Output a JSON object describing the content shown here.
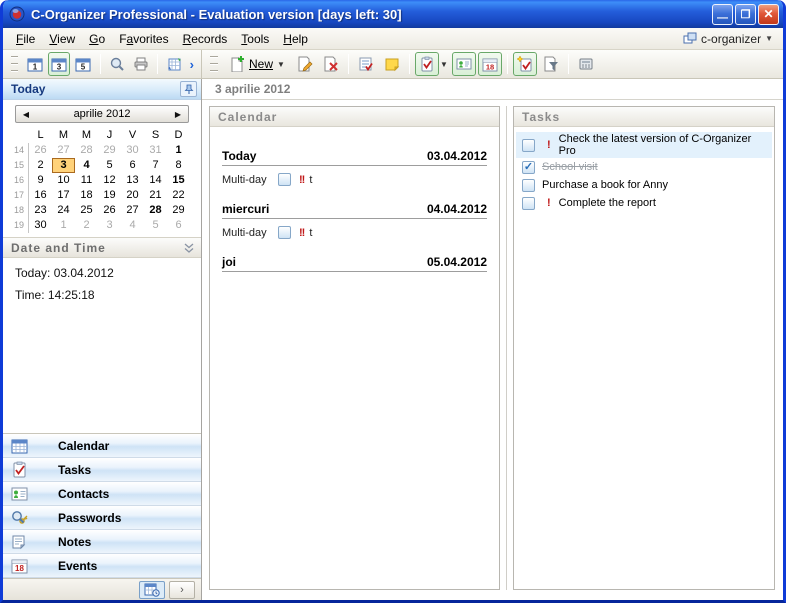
{
  "window": {
    "title": "C-Organizer Professional - Evaluation version [days left: 30]",
    "controls": [
      "minimize",
      "maximize",
      "close"
    ]
  },
  "menu": {
    "items": [
      {
        "label": "File",
        "accel": 0
      },
      {
        "label": "View",
        "accel": 0
      },
      {
        "label": "Go",
        "accel": 0
      },
      {
        "label": "Favorites",
        "accel": 1
      },
      {
        "label": "Records",
        "accel": 0
      },
      {
        "label": "Tools",
        "accel": 0
      },
      {
        "label": "Help",
        "accel": 0
      }
    ],
    "right_label": "c-organizer"
  },
  "toolbar": {
    "new_label": "New",
    "left_icons": [
      "day-view-1-icon",
      "day-view-3-icon",
      "day-view-5-icon",
      "search-icon",
      "print-icon",
      "goto-date-icon",
      "overflow-chevron-icon"
    ],
    "right_icons": [
      "new-record-icon",
      "edit-record-icon",
      "delete-record-icon",
      "task-list-icon",
      "note-icon",
      "tasks-toggle-icon",
      "contacts-toggle-icon",
      "events-toggle-icon",
      "new-task-icon",
      "filter-icon",
      "phone-icon"
    ],
    "active_view": "3",
    "view_labels": {
      "one": "1",
      "three": "3",
      "five": "5"
    },
    "events_icon_label": "18"
  },
  "left_panel": {
    "today_header": "Today",
    "calendar": {
      "month_label": "aprilie 2012",
      "day_headers": [
        "L",
        "M",
        "M",
        "J",
        "V",
        "S",
        "D"
      ],
      "week_numbers": [
        14,
        15,
        16,
        17,
        18,
        19
      ],
      "weeks": [
        [
          {
            "d": 26,
            "m": 1
          },
          {
            "d": 27,
            "m": 1
          },
          {
            "d": 28,
            "m": 1
          },
          {
            "d": 29,
            "m": 1
          },
          {
            "d": 30,
            "m": 1
          },
          {
            "d": 31,
            "m": 1
          },
          {
            "d": 1,
            "b": 1
          }
        ],
        [
          {
            "d": 2
          },
          {
            "d": 3,
            "t": 1
          },
          {
            "d": 4,
            "b": 1
          },
          {
            "d": 5
          },
          {
            "d": 6
          },
          {
            "d": 7
          },
          {
            "d": 8
          }
        ],
        [
          {
            "d": 9
          },
          {
            "d": 10
          },
          {
            "d": 11
          },
          {
            "d": 12
          },
          {
            "d": 13
          },
          {
            "d": 14
          },
          {
            "d": 15,
            "b": 1
          }
        ],
        [
          {
            "d": 16
          },
          {
            "d": 17
          },
          {
            "d": 18
          },
          {
            "d": 19
          },
          {
            "d": 20
          },
          {
            "d": 21
          },
          {
            "d": 22
          }
        ],
        [
          {
            "d": 23
          },
          {
            "d": 24
          },
          {
            "d": 25
          },
          {
            "d": 26
          },
          {
            "d": 27
          },
          {
            "d": 28,
            "b": 1
          },
          {
            "d": 29
          }
        ],
        [
          {
            "d": 30
          },
          {
            "d": 1,
            "m": 1
          },
          {
            "d": 2,
            "m": 1
          },
          {
            "d": 3,
            "m": 1
          },
          {
            "d": 4,
            "m": 1
          },
          {
            "d": 5,
            "m": 1
          },
          {
            "d": 6,
            "m": 1
          }
        ]
      ],
      "today_date": 3
    },
    "datetime": {
      "header": "Date and Time",
      "today_line": "Today: 03.04.2012",
      "time_line": "Time: 14:25:18"
    },
    "nav": [
      {
        "label": "Calendar",
        "icon": "calendar-icon"
      },
      {
        "label": "Tasks",
        "icon": "tasks-icon"
      },
      {
        "label": "Contacts",
        "icon": "contacts-icon"
      },
      {
        "label": "Passwords",
        "icon": "passwords-icon"
      },
      {
        "label": "Notes",
        "icon": "notes-icon"
      },
      {
        "label": "Events",
        "icon": "events-icon"
      }
    ]
  },
  "main": {
    "date_header": "3 aprilie 2012",
    "calendar_panel": {
      "header": "Calendar",
      "days": [
        {
          "label": "Today",
          "date": "03.04.2012",
          "events": [
            {
              "label": "Multi-day",
              "priority": "!!",
              "title": "t",
              "checked": false
            }
          ]
        },
        {
          "label": "miercuri",
          "date": "04.04.2012",
          "events": [
            {
              "label": "Multi-day",
              "priority": "!!",
              "title": "t",
              "checked": false
            }
          ]
        },
        {
          "label": "joi",
          "date": "05.04.2012",
          "events": []
        }
      ]
    },
    "tasks_panel": {
      "header": "Tasks",
      "items": [
        {
          "title": "Check the latest version of C-Organizer Pro",
          "checked": false,
          "priority": true,
          "highlighted": true,
          "completed": false
        },
        {
          "title": "School visit",
          "checked": true,
          "priority": false,
          "highlighted": false,
          "completed": true
        },
        {
          "title": "Purchase a book for Anny",
          "checked": false,
          "priority": false,
          "highlighted": false,
          "completed": false
        },
        {
          "title": "Complete the report",
          "checked": false,
          "priority": true,
          "highlighted": false,
          "completed": false
        }
      ]
    }
  },
  "colors": {
    "titlebar_blue": "#245edb",
    "active_toggle_green": "#69a869",
    "today_highlight": "#ffd27a",
    "priority_red": "#c01818",
    "task_highlight": "#e3f1fc",
    "nav_stripe_blue": "#cfe3f6"
  }
}
